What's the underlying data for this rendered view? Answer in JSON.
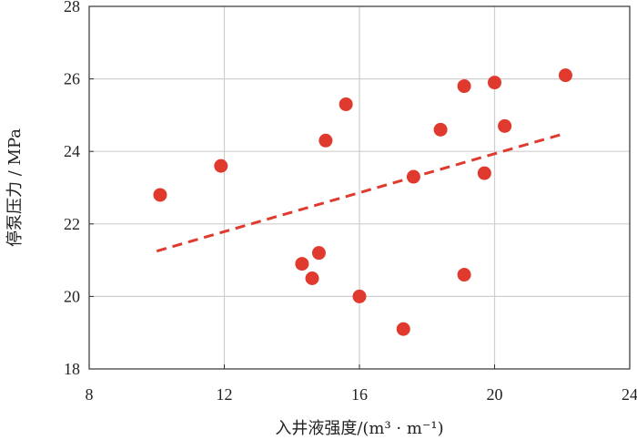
{
  "chart_data": {
    "type": "scatter",
    "xlabel": "入井液强度/(m³ · m⁻¹)",
    "ylabel": "停泵压力 / MPa",
    "xlim": [
      8,
      24
    ],
    "ylim": [
      18,
      28
    ],
    "xticks": [
      8,
      12,
      16,
      20,
      24
    ],
    "yticks": [
      18,
      20,
      22,
      24,
      26,
      28
    ],
    "grid": true,
    "points": [
      {
        "x": 10.1,
        "y": 22.8
      },
      {
        "x": 11.9,
        "y": 23.6
      },
      {
        "x": 14.3,
        "y": 20.9
      },
      {
        "x": 14.6,
        "y": 20.5
      },
      {
        "x": 14.8,
        "y": 21.2
      },
      {
        "x": 15.0,
        "y": 24.3
      },
      {
        "x": 15.6,
        "y": 25.3
      },
      {
        "x": 16.0,
        "y": 20.0
      },
      {
        "x": 17.3,
        "y": 19.1
      },
      {
        "x": 17.6,
        "y": 23.3
      },
      {
        "x": 18.4,
        "y": 24.6
      },
      {
        "x": 19.1,
        "y": 20.6
      },
      {
        "x": 19.1,
        "y": 25.8
      },
      {
        "x": 19.7,
        "y": 23.4
      },
      {
        "x": 20.0,
        "y": 25.9
      },
      {
        "x": 20.3,
        "y": 24.7
      },
      {
        "x": 22.1,
        "y": 26.1
      }
    ],
    "trendline": {
      "x": [
        10.0,
        22.1
      ],
      "y": [
        21.25,
        24.5
      ]
    },
    "colors": {
      "points": "#e03a2f",
      "trendline": "#e03a2f",
      "grid": "#cfcfcf",
      "axis": "#333333"
    }
  }
}
